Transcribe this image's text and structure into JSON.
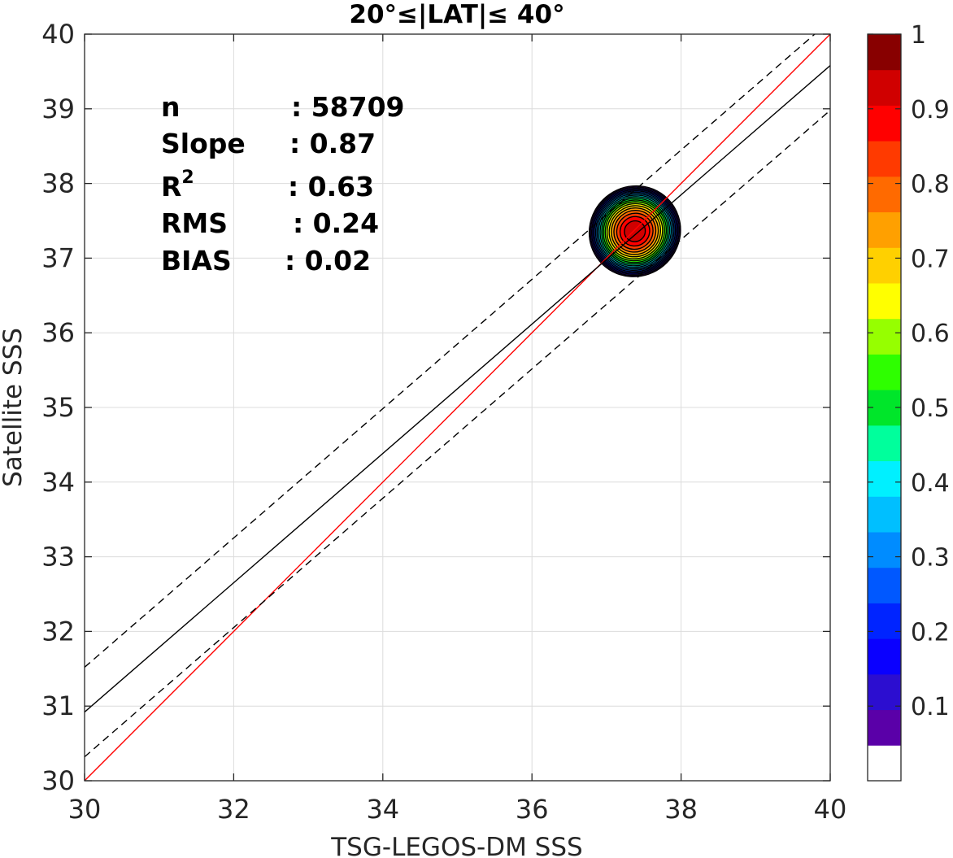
{
  "chart_data": {
    "type": "contour",
    "title": "20°≤|LAT|≤ 40°",
    "xlabel": "TSG-LEGOS-DM SSS",
    "ylabel": "Satellite SSS",
    "xlim": [
      30,
      40
    ],
    "ylim": [
      30,
      40
    ],
    "x_ticks": [
      "30",
      "32",
      "34",
      "36",
      "38",
      "40"
    ],
    "y_ticks": [
      "30",
      "31",
      "32",
      "33",
      "34",
      "35",
      "36",
      "37",
      "38",
      "39",
      "40"
    ],
    "grid": true,
    "stats": [
      {
        "name": "n",
        "value": ": 58709"
      },
      {
        "name": "Slope",
        "value": ": 0.87"
      },
      {
        "name": "R",
        "sup": "2",
        "value": ": 0.63"
      },
      {
        "name": "RMS",
        "value": ": 0.24"
      },
      {
        "name": "BIAS",
        "value": ": 0.02"
      }
    ],
    "lines": [
      {
        "role": "one-to-one",
        "color": "#ff0000",
        "style": "solid",
        "points": [
          [
            30,
            30
          ],
          [
            40,
            40
          ]
        ]
      },
      {
        "role": "regression",
        "color": "#000000",
        "style": "solid",
        "points": [
          [
            30,
            30.92
          ],
          [
            40,
            39.58
          ]
        ]
      },
      {
        "role": "regression-upper",
        "color": "#000000",
        "style": "dashed",
        "points": [
          [
            30,
            31.52
          ],
          [
            40,
            40.18
          ]
        ]
      },
      {
        "role": "regression-lower",
        "color": "#000000",
        "style": "dashed",
        "points": [
          [
            30,
            30.32
          ],
          [
            40,
            38.98
          ]
        ]
      }
    ],
    "density": {
      "center": [
        37.38,
        37.36
      ],
      "outer_radius_x": 0.62,
      "outer_radius_y": 0.6,
      "rotation_deg": 40,
      "levels": [
        0.05,
        0.1,
        0.15,
        0.2,
        0.25,
        0.3,
        0.35,
        0.4,
        0.45,
        0.5,
        0.55,
        0.6,
        0.65,
        0.7,
        0.75,
        0.8,
        0.85,
        0.9,
        0.95
      ]
    },
    "colorbar": {
      "labels": [
        "0.1",
        "0.2",
        "0.3",
        "0.4",
        "0.5",
        "0.6",
        "0.7",
        "0.8",
        "0.9",
        "1"
      ],
      "colors": [
        "#ffffff",
        "#5a00a8",
        "#2c0ed0",
        "#0a00ff",
        "#0024ff",
        "#0058ff",
        "#008cff",
        "#00bfff",
        "#00f0ff",
        "#00ff9c",
        "#00e62a",
        "#2eff00",
        "#96ff00",
        "#ffff00",
        "#ffd000",
        "#ffa000",
        "#ff6a00",
        "#ff3a00",
        "#ff0000",
        "#d00000",
        "#880000"
      ]
    }
  }
}
